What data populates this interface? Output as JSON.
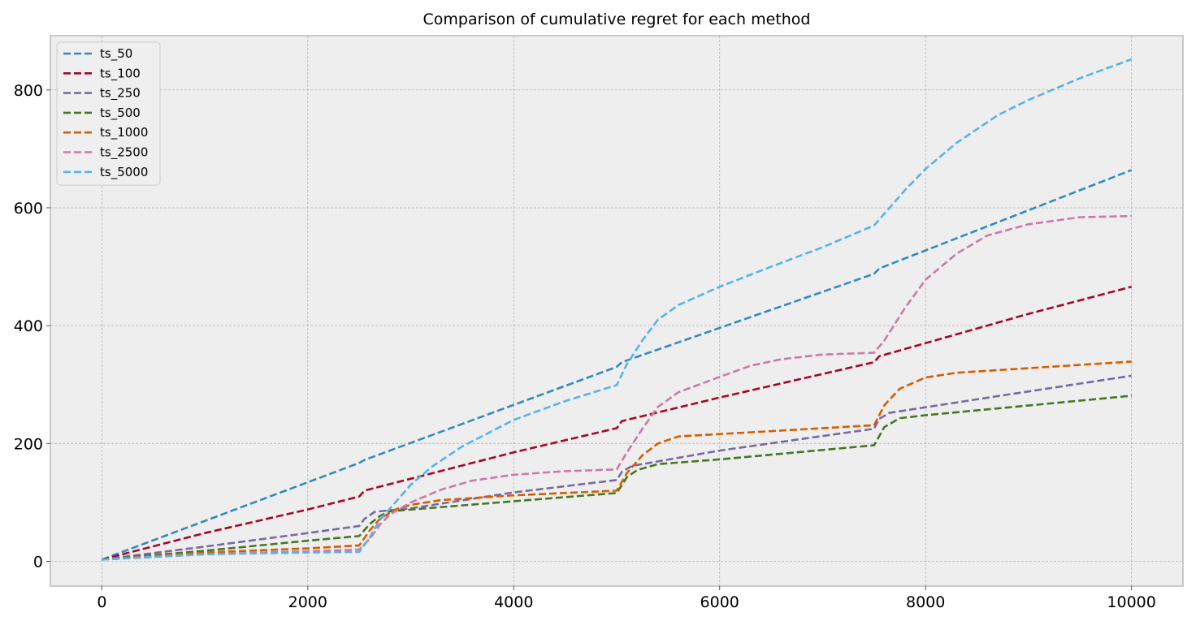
{
  "chart_data": {
    "type": "line",
    "title": "Comparison of cumulative regret for each method",
    "xlabel": "",
    "ylabel": "",
    "xlim": [
      -500,
      10500
    ],
    "ylim": [
      -42,
      892
    ],
    "xticks": [
      0,
      2000,
      4000,
      6000,
      8000,
      10000
    ],
    "yticks": [
      0,
      200,
      400,
      600,
      800
    ],
    "grid": true,
    "legend_position": "top-left",
    "line_style": "dashed",
    "series": [
      {
        "name": "ts_50",
        "color": "#348ABD",
        "points": [
          [
            0,
            3
          ],
          [
            2500,
            167
          ],
          [
            2550,
            172
          ],
          [
            5000,
            330
          ],
          [
            5050,
            338
          ],
          [
            7500,
            488
          ],
          [
            7550,
            497
          ],
          [
            10000,
            664
          ]
        ]
      },
      {
        "name": "ts_100",
        "color": "#A60628",
        "points": [
          [
            0,
            3
          ],
          [
            1000,
            48
          ],
          [
            2000,
            88
          ],
          [
            2500,
            110
          ],
          [
            2550,
            120
          ],
          [
            4000,
            185
          ],
          [
            5000,
            226
          ],
          [
            5050,
            238
          ],
          [
            6000,
            278
          ],
          [
            7500,
            338
          ],
          [
            7550,
            348
          ],
          [
            9000,
            420
          ],
          [
            10000,
            466
          ]
        ]
      },
      {
        "name": "ts_250",
        "color": "#7A68A6",
        "points": [
          [
            0,
            3
          ],
          [
            1000,
            25
          ],
          [
            2000,
            48
          ],
          [
            2500,
            60
          ],
          [
            2550,
            72
          ],
          [
            2650,
            84
          ],
          [
            3000,
            90
          ],
          [
            4000,
            117
          ],
          [
            5000,
            138
          ],
          [
            5050,
            152
          ],
          [
            5150,
            162
          ],
          [
            6000,
            188
          ],
          [
            7500,
            225
          ],
          [
            7550,
            242
          ],
          [
            7650,
            252
          ],
          [
            8500,
            275
          ],
          [
            10000,
            315
          ]
        ]
      },
      {
        "name": "ts_500",
        "color": "#467821",
        "points": [
          [
            0,
            3
          ],
          [
            1000,
            18
          ],
          [
            2000,
            35
          ],
          [
            2500,
            43
          ],
          [
            2600,
            63
          ],
          [
            2700,
            77
          ],
          [
            2800,
            85
          ],
          [
            4000,
            102
          ],
          [
            5000,
            116
          ],
          [
            5100,
            143
          ],
          [
            5200,
            155
          ],
          [
            5400,
            165
          ],
          [
            6000,
            173
          ],
          [
            7500,
            197
          ],
          [
            7600,
            228
          ],
          [
            7750,
            243
          ],
          [
            8000,
            248
          ],
          [
            10000,
            281
          ]
        ]
      },
      {
        "name": "ts_1000",
        "color": "#D55E00",
        "points": [
          [
            0,
            3
          ],
          [
            1000,
            15
          ],
          [
            2000,
            22
          ],
          [
            2500,
            27
          ],
          [
            2600,
            52
          ],
          [
            2700,
            72
          ],
          [
            2850,
            88
          ],
          [
            3000,
            96
          ],
          [
            3300,
            104
          ],
          [
            4000,
            112
          ],
          [
            5000,
            120
          ],
          [
            5100,
            150
          ],
          [
            5250,
            180
          ],
          [
            5400,
            200
          ],
          [
            5600,
            212
          ],
          [
            6000,
            216
          ],
          [
            7500,
            231
          ],
          [
            7600,
            265
          ],
          [
            7750,
            293
          ],
          [
            8000,
            312
          ],
          [
            8300,
            320
          ],
          [
            10000,
            339
          ]
        ]
      },
      {
        "name": "ts_2500",
        "color": "#CC79A7",
        "points": [
          [
            0,
            3
          ],
          [
            1000,
            12
          ],
          [
            2000,
            17
          ],
          [
            2500,
            20
          ],
          [
            2600,
            38
          ],
          [
            2700,
            62
          ],
          [
            2800,
            80
          ],
          [
            3000,
            100
          ],
          [
            3300,
            122
          ],
          [
            3600,
            137
          ],
          [
            4000,
            147
          ],
          [
            4500,
            153
          ],
          [
            5000,
            156
          ],
          [
            5100,
            185
          ],
          [
            5250,
            225
          ],
          [
            5400,
            262
          ],
          [
            5600,
            287
          ],
          [
            6000,
            313
          ],
          [
            6300,
            332
          ],
          [
            6600,
            343
          ],
          [
            7000,
            351
          ],
          [
            7500,
            354
          ],
          [
            7600,
            375
          ],
          [
            7800,
            430
          ],
          [
            8000,
            478
          ],
          [
            8300,
            522
          ],
          [
            8600,
            553
          ],
          [
            9000,
            572
          ],
          [
            9500,
            584
          ],
          [
            10000,
            586
          ]
        ]
      },
      {
        "name": "ts_5000",
        "color": "#56B4E9",
        "points": [
          [
            0,
            3
          ],
          [
            1000,
            12
          ],
          [
            2000,
            15
          ],
          [
            2500,
            16
          ],
          [
            2600,
            40
          ],
          [
            2700,
            70
          ],
          [
            2850,
            100
          ],
          [
            3000,
            130
          ],
          [
            3200,
            160
          ],
          [
            3500,
            195
          ],
          [
            4000,
            240
          ],
          [
            4500,
            272
          ],
          [
            5000,
            299
          ],
          [
            5100,
            335
          ],
          [
            5250,
            375
          ],
          [
            5400,
            410
          ],
          [
            5600,
            435
          ],
          [
            6000,
            466
          ],
          [
            6500,
            500
          ],
          [
            7000,
            533
          ],
          [
            7500,
            570
          ],
          [
            7600,
            590
          ],
          [
            7800,
            630
          ],
          [
            8000,
            666
          ],
          [
            8300,
            710
          ],
          [
            8700,
            757
          ],
          [
            9000,
            783
          ],
          [
            9500,
            820
          ],
          [
            10000,
            852
          ]
        ]
      }
    ]
  }
}
